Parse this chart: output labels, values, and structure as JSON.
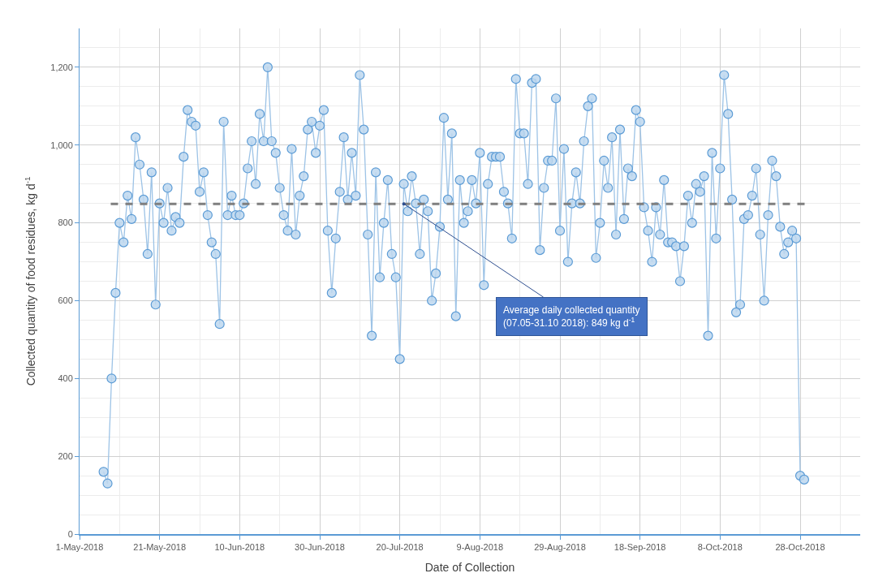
{
  "chart_data": {
    "type": "line",
    "xlabel": "Date of Collection",
    "ylabel": "Collected quantity of food residues, kg d$^{-1}$",
    "xlim": [
      "2018-05-01",
      "2018-11-12"
    ],
    "xticks": [
      {
        "value": "2018-05-01",
        "label": "1-May-2018"
      },
      {
        "value": "2018-05-21",
        "label": "21-May-2018"
      },
      {
        "value": "2018-06-10",
        "label": "10-Jun-2018"
      },
      {
        "value": "2018-06-30",
        "label": "30-Jun-2018"
      },
      {
        "value": "2018-07-20",
        "label": "20-Jul-2018"
      },
      {
        "value": "2018-08-09",
        "label": "9-Aug-2018"
      },
      {
        "value": "2018-08-29",
        "label": "29-Aug-2018"
      },
      {
        "value": "2018-09-18",
        "label": "18-Sep-2018"
      },
      {
        "value": "2018-10-08",
        "label": "8-Oct-2018"
      },
      {
        "value": "2018-10-28",
        "label": "28-Oct-2018"
      }
    ],
    "ylim": [
      0,
      1300
    ],
    "yticks": [
      0,
      200,
      400,
      600,
      800,
      {
        "value": 1000,
        "label": "1,000"
      },
      {
        "value": 1200,
        "label": "1,200"
      }
    ],
    "grid": true,
    "marker": "circle",
    "line_style": "solid",
    "x": [
      "2018-05-07",
      "2018-05-08",
      "2018-05-09",
      "2018-05-10",
      "2018-05-11",
      "2018-05-12",
      "2018-05-13",
      "2018-05-14",
      "2018-05-15",
      "2018-05-16",
      "2018-05-17",
      "2018-05-18",
      "2018-05-19",
      "2018-05-20",
      "2018-05-21",
      "2018-05-22",
      "2018-05-23",
      "2018-05-24",
      "2018-05-25",
      "2018-05-26",
      "2018-05-27",
      "2018-05-28",
      "2018-05-29",
      "2018-05-30",
      "2018-05-31",
      "2018-06-01",
      "2018-06-02",
      "2018-06-03",
      "2018-06-04",
      "2018-06-05",
      "2018-06-06",
      "2018-06-07",
      "2018-06-08",
      "2018-06-09",
      "2018-06-10",
      "2018-06-11",
      "2018-06-12",
      "2018-06-13",
      "2018-06-14",
      "2018-06-15",
      "2018-06-16",
      "2018-06-17",
      "2018-06-18",
      "2018-06-19",
      "2018-06-20",
      "2018-06-21",
      "2018-06-22",
      "2018-06-23",
      "2018-06-24",
      "2018-06-25",
      "2018-06-26",
      "2018-06-27",
      "2018-06-28",
      "2018-06-29",
      "2018-06-30",
      "2018-07-01",
      "2018-07-02",
      "2018-07-03",
      "2018-07-04",
      "2018-07-05",
      "2018-07-06",
      "2018-07-07",
      "2018-07-08",
      "2018-07-09",
      "2018-07-10",
      "2018-07-11",
      "2018-07-12",
      "2018-07-13",
      "2018-07-14",
      "2018-07-15",
      "2018-07-16",
      "2018-07-17",
      "2018-07-18",
      "2018-07-19",
      "2018-07-20",
      "2018-07-21",
      "2018-07-22",
      "2018-07-23",
      "2018-07-24",
      "2018-07-25",
      "2018-07-26",
      "2018-07-27",
      "2018-07-28",
      "2018-07-29",
      "2018-07-30",
      "2018-07-31",
      "2018-08-01",
      "2018-08-02",
      "2018-08-03",
      "2018-08-04",
      "2018-08-05",
      "2018-08-06",
      "2018-08-07",
      "2018-08-08",
      "2018-08-09",
      "2018-08-10",
      "2018-08-11",
      "2018-08-12",
      "2018-08-13",
      "2018-08-14",
      "2018-08-15",
      "2018-08-16",
      "2018-08-17",
      "2018-08-18",
      "2018-08-19",
      "2018-08-20",
      "2018-08-21",
      "2018-08-22",
      "2018-08-23",
      "2018-08-24",
      "2018-08-25",
      "2018-08-26",
      "2018-08-27",
      "2018-08-28",
      "2018-08-29",
      "2018-08-30",
      "2018-08-31",
      "2018-09-01",
      "2018-09-02",
      "2018-09-03",
      "2018-09-04",
      "2018-09-05",
      "2018-09-06",
      "2018-09-07",
      "2018-09-08",
      "2018-09-09",
      "2018-09-10",
      "2018-09-11",
      "2018-09-12",
      "2018-09-13",
      "2018-09-14",
      "2018-09-15",
      "2018-09-16",
      "2018-09-17",
      "2018-09-18",
      "2018-09-19",
      "2018-09-20",
      "2018-09-21",
      "2018-09-22",
      "2018-09-23",
      "2018-09-24",
      "2018-09-25",
      "2018-09-26",
      "2018-09-27",
      "2018-09-28",
      "2018-09-29",
      "2018-09-30",
      "2018-10-01",
      "2018-10-02",
      "2018-10-03",
      "2018-10-04",
      "2018-10-05",
      "2018-10-06",
      "2018-10-07",
      "2018-10-08",
      "2018-10-09",
      "2018-10-10",
      "2018-10-11",
      "2018-10-12",
      "2018-10-13",
      "2018-10-14",
      "2018-10-15",
      "2018-10-16",
      "2018-10-17",
      "2018-10-18",
      "2018-10-19",
      "2018-10-20",
      "2018-10-21",
      "2018-10-22",
      "2018-10-23",
      "2018-10-24",
      "2018-10-25",
      "2018-10-26",
      "2018-10-27",
      "2018-10-28",
      "2018-10-29"
    ],
    "series": [
      {
        "color": "#9dc3e6",
        "values": [
          160,
          130,
          400,
          620,
          800,
          750,
          870,
          810,
          1020,
          950,
          860,
          720,
          930,
          590,
          850,
          800,
          890,
          780,
          815,
          800,
          970,
          1090,
          1060,
          1050,
          880,
          930,
          820,
          750,
          720,
          540,
          1060,
          820,
          870,
          820,
          820,
          850,
          940,
          1010,
          900,
          1080,
          1010,
          1200,
          1010,
          980,
          890,
          820,
          780,
          990,
          770,
          870,
          920,
          1040,
          1060,
          980,
          1050,
          1090,
          780,
          620,
          760,
          880,
          1020,
          860,
          980,
          870,
          1180,
          1040,
          770,
          510,
          930,
          660,
          800,
          910,
          720,
          660,
          450,
          900,
          830,
          920,
          850,
          720,
          860,
          830,
          600,
          670,
          790,
          1070,
          860,
          1030,
          560,
          910,
          800,
          830,
          910,
          850,
          980,
          640,
          900,
          970,
          970,
          970,
          880,
          850,
          760,
          1170,
          1030,
          1030,
          900,
          1160,
          1170,
          730,
          890,
          960,
          960,
          1120,
          780,
          990,
          700,
          850,
          930,
          850,
          1010,
          1100,
          1120,
          710,
          800,
          960,
          890,
          1020,
          770,
          1040,
          810,
          940,
          920,
          1090,
          1060,
          840,
          780,
          700,
          840,
          770,
          910,
          750,
          750,
          740,
          650,
          740,
          870,
          800,
          900,
          880,
          920,
          510,
          980,
          760,
          940,
          1180,
          1080,
          860,
          570,
          590,
          810,
          820,
          870,
          940,
          770,
          600,
          820,
          960,
          920,
          790,
          720,
          750,
          780,
          760,
          150,
          140
        ]
      }
    ],
    "ref_lines": [
      {
        "axis": "y",
        "value": 849,
        "color": "#7f7f7f",
        "line_style": "dashed"
      }
    ],
    "annotations": [
      {
        "text": "Average daily collected quantity\n(07.05-31.10 2018): 849 kg d$^{-1}$",
        "x": "2018-07-21",
        "y": 849
      }
    ]
  }
}
